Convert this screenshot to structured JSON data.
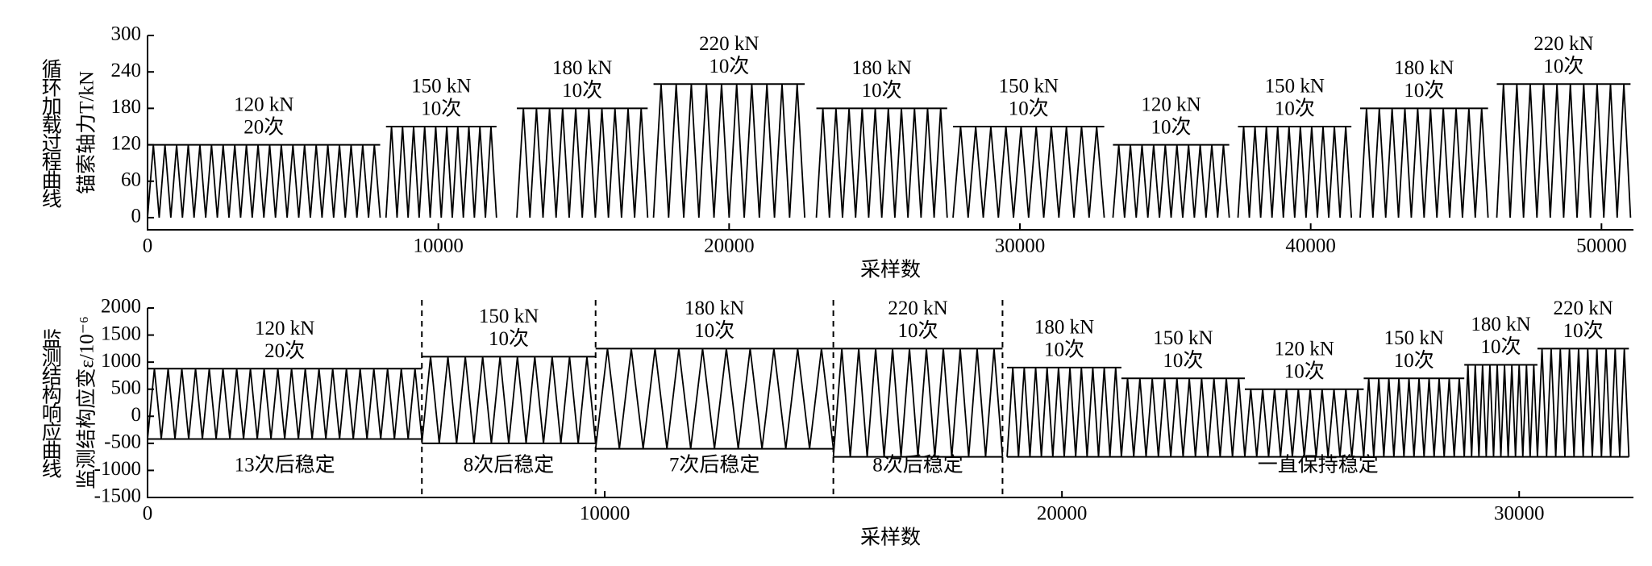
{
  "chart_data": [
    {
      "type": "sawtooth",
      "title": "循环加载过程曲线",
      "ylabel": "锚索轴力T/kN",
      "xlabel": "采样数",
      "xlim": [
        0,
        51100
      ],
      "ylim": [
        -20,
        300
      ],
      "xticks": [
        0,
        10000,
        20000,
        30000,
        40000,
        50000
      ],
      "yticks": [
        0,
        60,
        120,
        180,
        240,
        300
      ],
      "color": "#000000",
      "segments": [
        {
          "x": [
            0,
            8000
          ],
          "upper": 120,
          "lower": 0,
          "cycles": 20,
          "load_label": "120 kN",
          "count_label": "20次"
        },
        {
          "x": [
            8200,
            12000
          ],
          "upper": 150,
          "lower": 0,
          "cycles": 10,
          "load_label": "150 kN",
          "count_label": "10次"
        },
        {
          "x": [
            12700,
            17200
          ],
          "upper": 180,
          "lower": 0,
          "cycles": 10,
          "load_label": "180 kN",
          "count_label": "10次"
        },
        {
          "x": [
            17400,
            22600
          ],
          "upper": 220,
          "lower": 0,
          "cycles": 10,
          "load_label": "220 kN",
          "count_label": "10次"
        },
        {
          "x": [
            23000,
            27500
          ],
          "upper": 180,
          "lower": 0,
          "cycles": 10,
          "load_label": "180 kN",
          "count_label": "10次"
        },
        {
          "x": [
            27700,
            32900
          ],
          "upper": 150,
          "lower": 0,
          "cycles": 10,
          "load_label": "150 kN",
          "count_label": "10次"
        },
        {
          "x": [
            33200,
            37200
          ],
          "upper": 120,
          "lower": 0,
          "cycles": 10,
          "load_label": "120 kN",
          "count_label": "10次"
        },
        {
          "x": [
            37500,
            41400
          ],
          "upper": 150,
          "lower": 0,
          "cycles": 10,
          "load_label": "150 kN",
          "count_label": "10次"
        },
        {
          "x": [
            41700,
            46100
          ],
          "upper": 180,
          "lower": 0,
          "cycles": 10,
          "load_label": "180 kN",
          "count_label": "10次"
        },
        {
          "x": [
            46400,
            51000
          ],
          "upper": 220,
          "lower": 0,
          "cycles": 10,
          "load_label": "220 kN",
          "count_label": "10次"
        }
      ]
    },
    {
      "type": "sawtooth",
      "title": "监测结构响应曲线",
      "ylabel": "监测结构应变ε/10⁻⁶",
      "xlabel": "采样数",
      "xlim": [
        0,
        32500
      ],
      "ylim": [
        -1500,
        2000
      ],
      "xticks": [
        0,
        10000,
        20000,
        30000
      ],
      "yticks": [
        -1500,
        -1000,
        -500,
        0,
        500,
        1000,
        1500,
        2000
      ],
      "color": "#000000",
      "dividers": [
        6000,
        9800,
        15000,
        18700
      ],
      "notes": [
        "13次后稳定",
        "8次后稳定",
        "7次后稳定",
        "8次后稳定",
        "一直保持稳定"
      ],
      "segments": [
        {
          "x": [
            0,
            6000
          ],
          "upper": 880,
          "lower": -420,
          "cycles": 20,
          "load_label": "120 kN",
          "count_label": "20次"
        },
        {
          "x": [
            6000,
            9800
          ],
          "upper": 1100,
          "lower": -500,
          "cycles": 10,
          "load_label": "150 kN",
          "count_label": "10次"
        },
        {
          "x": [
            9800,
            15000
          ],
          "upper": 1250,
          "lower": -600,
          "cycles": 10,
          "load_label": "180 kN",
          "count_label": "10次"
        },
        {
          "x": [
            15000,
            18700
          ],
          "upper": 1250,
          "lower": -750,
          "cycles": 10,
          "load_label": "220 kN",
          "count_label": "10次"
        },
        {
          "x": [
            18800,
            21300
          ],
          "upper": 900,
          "lower": -750,
          "cycles": 10,
          "load_label": "180 kN",
          "count_label": "10次"
        },
        {
          "x": [
            21300,
            24000
          ],
          "upper": 700,
          "lower": -750,
          "cycles": 10,
          "load_label": "150 kN",
          "count_label": "10次"
        },
        {
          "x": [
            24000,
            26600
          ],
          "upper": 500,
          "lower": -750,
          "cycles": 10,
          "load_label": "120 kN",
          "count_label": "10次"
        },
        {
          "x": [
            26600,
            28800
          ],
          "upper": 700,
          "lower": -750,
          "cycles": 10,
          "load_label": "150 kN",
          "count_label": "10次"
        },
        {
          "x": [
            28800,
            30400
          ],
          "upper": 950,
          "lower": -750,
          "cycles": 10,
          "load_label": "180 kN",
          "count_label": "10次"
        },
        {
          "x": [
            30400,
            32400
          ],
          "upper": 1250,
          "lower": -750,
          "cycles": 10,
          "load_label": "220 kN",
          "count_label": "10次"
        }
      ]
    }
  ]
}
